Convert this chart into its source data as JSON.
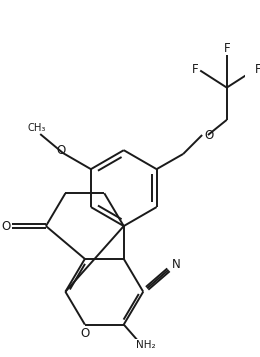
{
  "bg_color": "#ffffff",
  "line_color": "#1a1a1a",
  "bond_width": 1.4,
  "figsize": [
    2.6,
    3.57
  ],
  "dpi": 100,
  "xlim": [
    -0.5,
    4.5
  ],
  "ylim": [
    -0.3,
    6.5
  ]
}
